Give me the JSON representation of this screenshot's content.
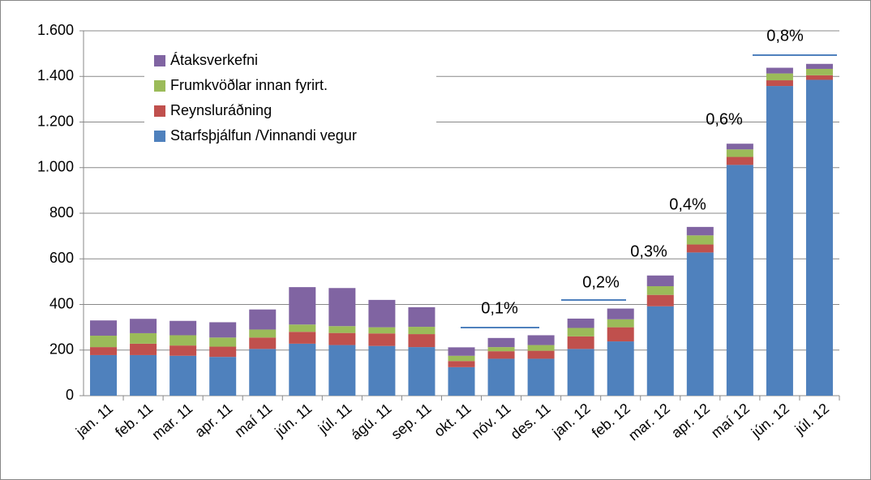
{
  "chart_data": {
    "type": "stacked_bar",
    "categories": [
      "jan. 11",
      "feb. 11",
      "mar. 11",
      "apr. 11",
      "maí 11",
      "jún. 11",
      "júl. 11",
      "ágú. 11",
      "sep. 11",
      "okt. 11",
      "nóv. 11",
      "des. 11",
      "jan. 12",
      "feb. 12",
      "mar. 12",
      "apr. 12",
      "maí 12",
      "jún. 12",
      "júl. 12"
    ],
    "series": [
      {
        "name": "Starfsþjálfun /Vinnandi vegur",
        "color": "#4f81bd",
        "values": [
          178,
          178,
          175,
          170,
          205,
          228,
          222,
          218,
          213,
          125,
          162,
          162,
          205,
          238,
          392,
          628,
          1012,
          1358,
          1385
        ]
      },
      {
        "name": "Reynsluráðning",
        "color": "#c0504d",
        "values": [
          35,
          50,
          45,
          45,
          50,
          52,
          53,
          55,
          57,
          27,
          33,
          35,
          55,
          62,
          50,
          35,
          35,
          25,
          20
        ]
      },
      {
        "name": "Frumkvöðlar innan fyrirt.",
        "color": "#9bbb59",
        "values": [
          50,
          46,
          45,
          40,
          35,
          32,
          30,
          27,
          32,
          23,
          18,
          25,
          37,
          35,
          38,
          40,
          33,
          30,
          28
        ]
      },
      {
        "name": "Átaksverkefni",
        "color": "#8064a2",
        "values": [
          67,
          63,
          63,
          67,
          88,
          164,
          167,
          120,
          86,
          37,
          40,
          43,
          41,
          47,
          47,
          37,
          25,
          25,
          22
        ]
      }
    ],
    "ylim": [
      0,
      1600
    ],
    "yticks": [
      0,
      200,
      400,
      600,
      800,
      {
        "value": 1000,
        "label": "1.000"
      },
      {
        "value": 1200,
        "label": "1.200"
      },
      {
        "value": 1400,
        "label": "1.400"
      },
      {
        "value": 1600,
        "label": "1.600"
      }
    ],
    "grid": true,
    "legend": "upper left",
    "annotations": [
      "0,1%",
      "0,2%",
      "0,3%",
      "0,4%",
      "0,6%",
      "0,8%"
    ]
  }
}
